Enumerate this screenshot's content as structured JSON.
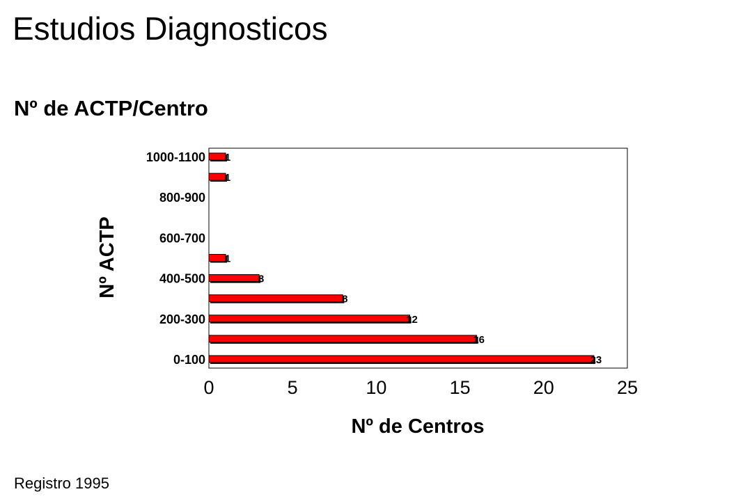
{
  "page": {
    "title": "Estudios Diagnosticos",
    "subtitle": "Nº de ACTP/Centro",
    "footer": "Registro 1995"
  },
  "chart_data": {
    "type": "bar",
    "orientation": "horizontal",
    "categories": [
      "0-100",
      "100-200",
      "200-300",
      "300-400",
      "400-500",
      "500-600",
      "600-700",
      "700-800",
      "800-900",
      "900-1000",
      "1000-1100"
    ],
    "category_labels_shown": [
      "0-100",
      "",
      "200-300",
      "",
      "400-500",
      "",
      "600-700",
      "",
      "800-900",
      "",
      "1000-1100"
    ],
    "values": [
      23,
      16,
      12,
      8,
      3,
      1,
      0,
      0,
      0,
      1,
      1
    ],
    "data_labels": [
      "23",
      "16",
      "12",
      "8",
      "3",
      "1",
      "",
      "",
      "",
      "1",
      "1"
    ],
    "xlabel": "Nº de Centros",
    "ylabel": "Nº ACTP",
    "xlim": [
      0,
      25
    ],
    "xticks": [
      0,
      5,
      10,
      15,
      20,
      25
    ],
    "grid": false,
    "legend": "none",
    "bar_color": "#ff0000",
    "bar_shadow_color": "#000000"
  }
}
